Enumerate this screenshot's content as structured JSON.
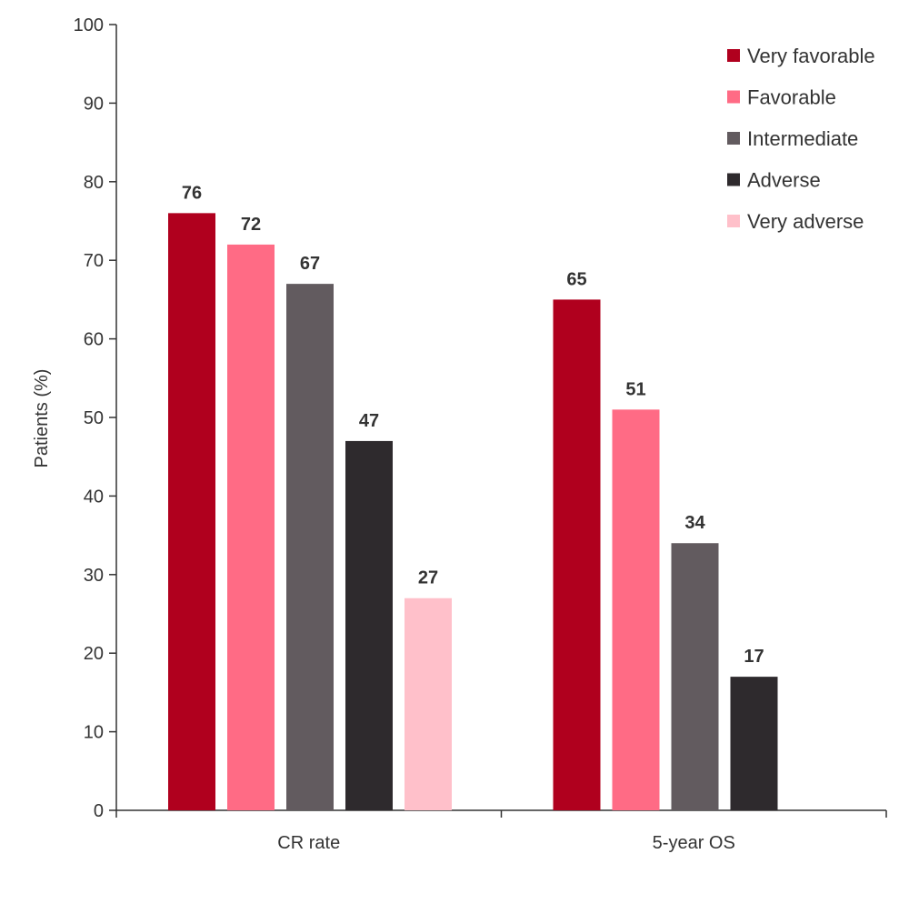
{
  "chart_data": {
    "type": "bar",
    "title": "",
    "xlabel": "",
    "ylabel": "Patients (%)",
    "ylim": [
      0,
      100
    ],
    "yticks": [
      0,
      10,
      20,
      30,
      40,
      50,
      60,
      70,
      80,
      90,
      100
    ],
    "grid": false,
    "legend_position": "top-right",
    "categories": [
      "CR rate",
      "5-year OS"
    ],
    "series": [
      {
        "name": "Very favorable",
        "color": "#B0001E",
        "values": [
          76,
          65
        ]
      },
      {
        "name": "Favorable",
        "color": "#FF6B85",
        "values": [
          72,
          51
        ]
      },
      {
        "name": "Intermediate",
        "color": "#625B5F",
        "values": [
          67,
          34
        ]
      },
      {
        "name": "Adverse",
        "color": "#2E2A2D",
        "values": [
          47,
          17
        ]
      },
      {
        "name": "Very adverse",
        "color": "#FFC0CA",
        "values": [
          27,
          null
        ]
      }
    ]
  }
}
